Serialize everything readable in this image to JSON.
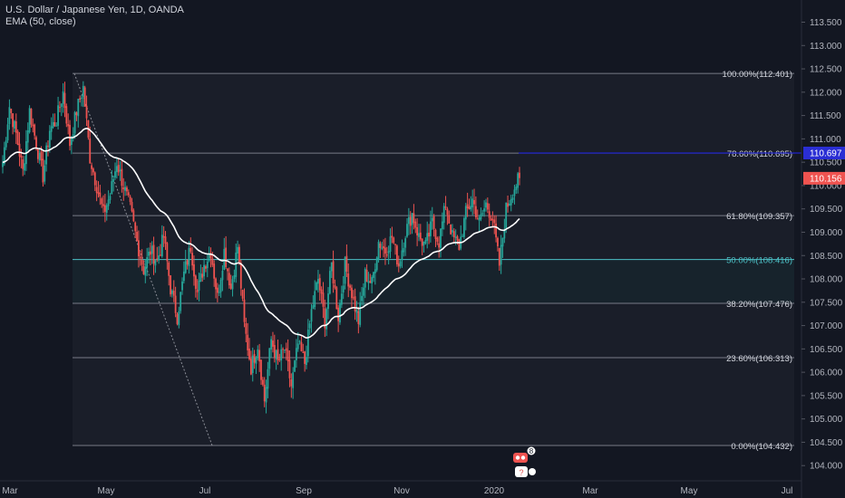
{
  "legend": {
    "symbol": "U.S. Dollar / Japanese Yen, 1D, OANDA",
    "indicator": "EMA (50, close)"
  },
  "colors": {
    "background": "#131722",
    "up": "#26a69a",
    "down": "#ef5350",
    "ema": "#ffffff",
    "fib_line": "#787b86",
    "fib_50": "#4dc1c7",
    "blue_line": "#1e22c8",
    "current_tag": "#ef5350",
    "blue_tag": "#2a2ed4"
  },
  "price_tags": {
    "blue": "110.697",
    "current": "110.156"
  },
  "event_badges": [
    "8",
    "?"
  ],
  "chart_data": {
    "type": "candlestick",
    "y_ticks": [
      "113.500",
      "113.000",
      "112.500",
      "112.000",
      "111.500",
      "111.000",
      "110.500",
      "110.000",
      "109.500",
      "109.000",
      "108.500",
      "108.000",
      "107.500",
      "107.000",
      "106.500",
      "106.000",
      "105.500",
      "105.000",
      "104.500",
      "104.000"
    ],
    "x_ticks": [
      "Mar",
      "May",
      "Jul",
      "Sep",
      "Nov",
      "2020",
      "Mar",
      "May",
      "Jul"
    ],
    "ylim": [
      103.6,
      113.8
    ],
    "fib_levels": [
      {
        "ratio": "100.00%",
        "price": 112.401,
        "label": "100.00%(112.401)"
      },
      {
        "ratio": "78.60%",
        "price": 110.695,
        "label": "78.60%(110.695)"
      },
      {
        "ratio": "61.80%",
        "price": 109.357,
        "label": "61.80%(109.357)"
      },
      {
        "ratio": "50.00%",
        "price": 108.416,
        "label": "50.00%(108.416)"
      },
      {
        "ratio": "38.20%",
        "price": 107.476,
        "label": "38.20%(107.476)"
      },
      {
        "ratio": "23.60%",
        "price": 106.313,
        "label": "23.60%(106.313)"
      },
      {
        "ratio": "0.00%",
        "price": 104.432,
        "label": "0.00%(104.432)"
      }
    ],
    "trend_line": {
      "from_price": 112.401,
      "to_price": 104.432
    },
    "anchor_closes": [
      [
        0,
        110.5
      ],
      [
        4,
        111.7
      ],
      [
        8,
        111.1
      ],
      [
        12,
        110.3
      ],
      [
        16,
        111.6
      ],
      [
        20,
        110.9
      ],
      [
        24,
        110.2
      ],
      [
        28,
        111.2
      ],
      [
        32,
        111.4
      ],
      [
        36,
        112.0
      ],
      [
        40,
        110.9
      ],
      [
        44,
        111.6
      ],
      [
        48,
        112.1
      ],
      [
        52,
        110.6
      ],
      [
        56,
        110.0
      ],
      [
        60,
        109.4
      ],
      [
        64,
        109.8
      ],
      [
        68,
        110.5
      ],
      [
        72,
        110.0
      ],
      [
        76,
        109.5
      ],
      [
        80,
        108.8
      ],
      [
        84,
        108.2
      ],
      [
        88,
        108.6
      ],
      [
        92,
        108.4
      ],
      [
        96,
        108.9
      ],
      [
        100,
        107.8
      ],
      [
        104,
        107.2
      ],
      [
        108,
        108.1
      ],
      [
        112,
        108.7
      ],
      [
        116,
        107.7
      ],
      [
        120,
        108.3
      ],
      [
        124,
        108.6
      ],
      [
        128,
        107.6
      ],
      [
        132,
        108.6
      ],
      [
        136,
        107.8
      ],
      [
        140,
        108.7
      ],
      [
        144,
        107.0
      ],
      [
        148,
        106.1
      ],
      [
        152,
        106.6
      ],
      [
        156,
        105.4
      ],
      [
        160,
        106.7
      ],
      [
        164,
        106.2
      ],
      [
        168,
        106.5
      ],
      [
        172,
        105.7
      ],
      [
        176,
        106.6
      ],
      [
        180,
        106.2
      ],
      [
        184,
        107.3
      ],
      [
        188,
        108.0
      ],
      [
        192,
        107.1
      ],
      [
        196,
        108.3
      ],
      [
        200,
        107.2
      ],
      [
        204,
        108.3
      ],
      [
        208,
        107.7
      ],
      [
        212,
        107.1
      ],
      [
        216,
        108.1
      ],
      [
        220,
        107.9
      ],
      [
        224,
        108.8
      ],
      [
        228,
        108.6
      ],
      [
        232,
        108.9
      ],
      [
        236,
        108.3
      ],
      [
        240,
        109.0
      ],
      [
        244,
        109.4
      ],
      [
        248,
        108.9
      ],
      [
        252,
        108.7
      ],
      [
        256,
        109.2
      ],
      [
        260,
        108.8
      ],
      [
        264,
        109.6
      ],
      [
        268,
        108.9
      ],
      [
        272,
        108.7
      ],
      [
        276,
        109.4
      ],
      [
        280,
        109.7
      ],
      [
        284,
        109.2
      ],
      [
        288,
        109.6
      ],
      [
        292,
        109.3
      ],
      [
        296,
        108.3
      ],
      [
        300,
        109.5
      ],
      [
        304,
        109.9
      ],
      [
        308,
        110.16
      ]
    ]
  }
}
